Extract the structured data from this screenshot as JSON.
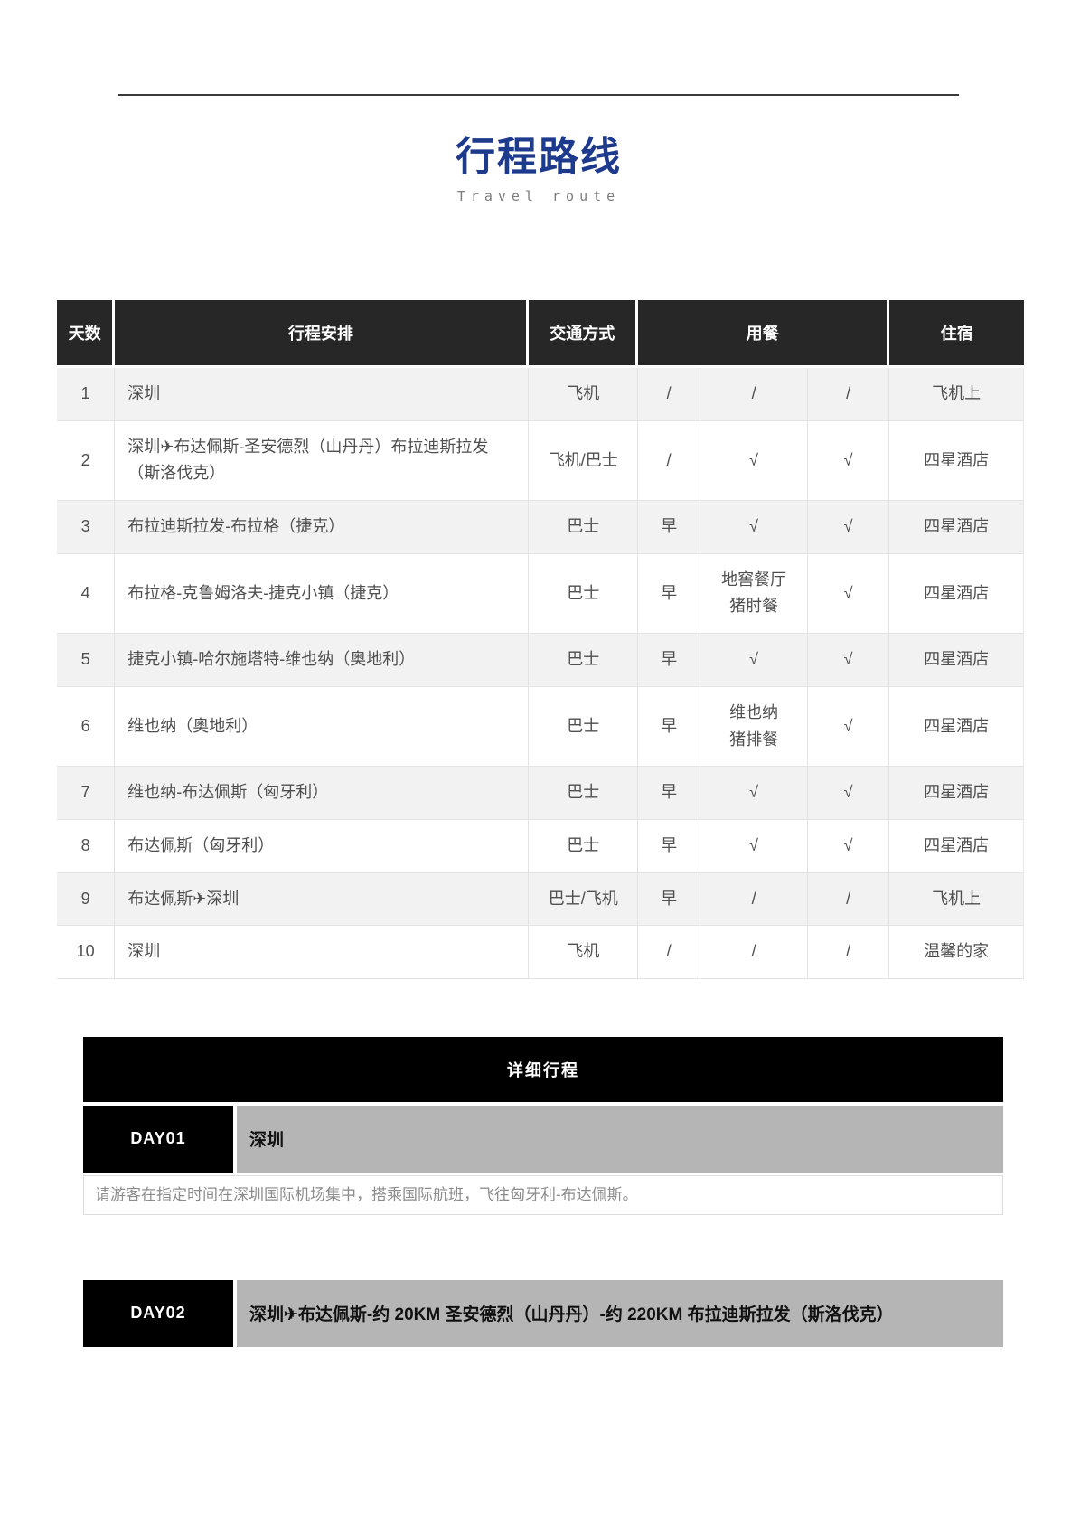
{
  "page": {
    "title": "行程路线",
    "subtitle": "Travel route"
  },
  "colors": {
    "title_blue": "#1e3a8c",
    "table_header_bg": "#272727",
    "zebra_row_bg": "#f2f2f2",
    "section_bar_bg": "#000000",
    "day_title_bg": "#b5b5b5"
  },
  "route_table": {
    "headers": {
      "days": "天数",
      "itinerary": "行程安排",
      "transport": "交通方式",
      "meals": "用餐",
      "lodging": "住宿"
    },
    "rows": [
      {
        "day": "1",
        "itinerary": "深圳",
        "transport": "飞机",
        "meals": [
          "/",
          "/",
          "/"
        ],
        "lodging": "飞机上"
      },
      {
        "day": "2",
        "itinerary": "深圳✈布达佩斯-圣安德烈（山丹丹）布拉迪斯拉发（斯洛伐克）",
        "transport": "飞机/巴士",
        "meals": [
          "/",
          "√",
          "√"
        ],
        "lodging": "四星酒店"
      },
      {
        "day": "3",
        "itinerary": "布拉迪斯拉发-布拉格（捷克）",
        "transport": "巴士",
        "meals": [
          "早",
          "√",
          "√"
        ],
        "lodging": "四星酒店"
      },
      {
        "day": "4",
        "itinerary": "布拉格-克鲁姆洛夫-捷克小镇（捷克）",
        "transport": "巴士",
        "meals": [
          "早",
          "地窖餐厅\n猪肘餐",
          "√"
        ],
        "lodging": "四星酒店"
      },
      {
        "day": "5",
        "itinerary": "捷克小镇-哈尔施塔特-维也纳（奥地利）",
        "transport": "巴士",
        "meals": [
          "早",
          "√",
          "√"
        ],
        "lodging": "四星酒店"
      },
      {
        "day": "6",
        "itinerary": "维也纳（奥地利）",
        "transport": "巴士",
        "meals": [
          "早",
          "维也纳\n猪排餐",
          "√"
        ],
        "lodging": "四星酒店"
      },
      {
        "day": "7",
        "itinerary": "维也纳-布达佩斯（匈牙利）",
        "transport": "巴士",
        "meals": [
          "早",
          "√",
          "√"
        ],
        "lodging": "四星酒店"
      },
      {
        "day": "8",
        "itinerary": "布达佩斯（匈牙利）",
        "transport": "巴士",
        "meals": [
          "早",
          "√",
          "√"
        ],
        "lodging": "四星酒店"
      },
      {
        "day": "9",
        "itinerary": "布达佩斯✈深圳",
        "transport": "巴士/飞机",
        "meals": [
          "早",
          "/",
          "/"
        ],
        "lodging": "飞机上"
      },
      {
        "day": "10",
        "itinerary": "深圳",
        "transport": "飞机",
        "meals": [
          "/",
          "/",
          "/"
        ],
        "lodging": "温馨的家"
      }
    ]
  },
  "detail": {
    "header": "详细行程",
    "days": [
      {
        "label": "DAY01",
        "title": "深圳",
        "description": "请游客在指定时间在深圳国际机场集中，搭乘国际航班，飞往匈牙利-布达佩斯。"
      },
      {
        "label": "DAY02",
        "title": "深圳✈布达佩斯-约 20KM 圣安德烈（山丹丹）-约 220KM 布拉迪斯拉发（斯洛伐克）"
      }
    ]
  }
}
